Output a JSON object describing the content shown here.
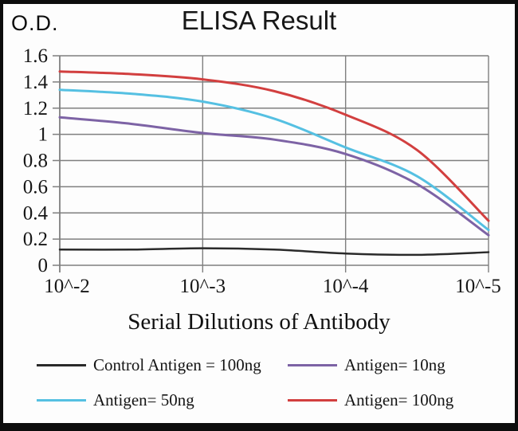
{
  "frame": {
    "border_color": "#0d0d0d",
    "background": "#fdfdfd"
  },
  "header": {
    "od_label": "O.D.",
    "title": "ELISA Result"
  },
  "chart_data": {
    "type": "line",
    "title": "ELISA Result",
    "y_axis_unit": "O.D.",
    "xlabel": "Serial Dilutions of Antibody",
    "ylabel": "O.D.",
    "x_scale": "log10 dilution, decreasing left to right",
    "x_tick_labels": [
      "10^-2",
      "10^-3",
      "10^-4",
      "10^-5"
    ],
    "x_tick_exponents": [
      -2,
      -3,
      -4,
      -5
    ],
    "xlim": [
      -2,
      -5
    ],
    "ylim": [
      0,
      1.6
    ],
    "y_tick_values": [
      0,
      0.2,
      0.4,
      0.6,
      0.8,
      1,
      1.2,
      1.4,
      1.6
    ],
    "y_tick_labels": [
      "0",
      "0.2",
      "0.4",
      "0.6",
      "0.8",
      "1",
      "1.2",
      "1.4",
      "1.6"
    ],
    "grid": true,
    "gridline_color": "#7f7f7f",
    "legend_position": "bottom, 2 columns",
    "x_samples": [
      -2,
      -2.5,
      -3,
      -3.5,
      -4,
      -4.5,
      -5
    ],
    "series": [
      {
        "name": "control-antigen-100ng",
        "legend_label": "Control Antigen = 100ng",
        "color": "#2a2a2a",
        "stroke_width": 2.5,
        "values": [
          0.12,
          0.12,
          0.13,
          0.12,
          0.09,
          0.08,
          0.1
        ]
      },
      {
        "name": "antigen-10ng",
        "legend_label": "Antigen= 10ng",
        "color": "#7d63a5",
        "stroke_width": 3,
        "values": [
          1.13,
          1.08,
          1.01,
          0.96,
          0.85,
          0.62,
          0.23
        ]
      },
      {
        "name": "antigen-50ng",
        "legend_label": "Antigen= 50ng",
        "color": "#55c0e2",
        "stroke_width": 3,
        "values": [
          1.34,
          1.31,
          1.25,
          1.12,
          0.9,
          0.68,
          0.27
        ]
      },
      {
        "name": "antigen-100ng",
        "legend_label": "Antigen= 100ng",
        "color": "#d23f3f",
        "stroke_width": 3,
        "values": [
          1.48,
          1.46,
          1.42,
          1.33,
          1.15,
          0.88,
          0.34
        ]
      }
    ],
    "legend_order": [
      "control-antigen-100ng",
      "antigen-10ng",
      "antigen-50ng",
      "antigen-100ng"
    ]
  }
}
